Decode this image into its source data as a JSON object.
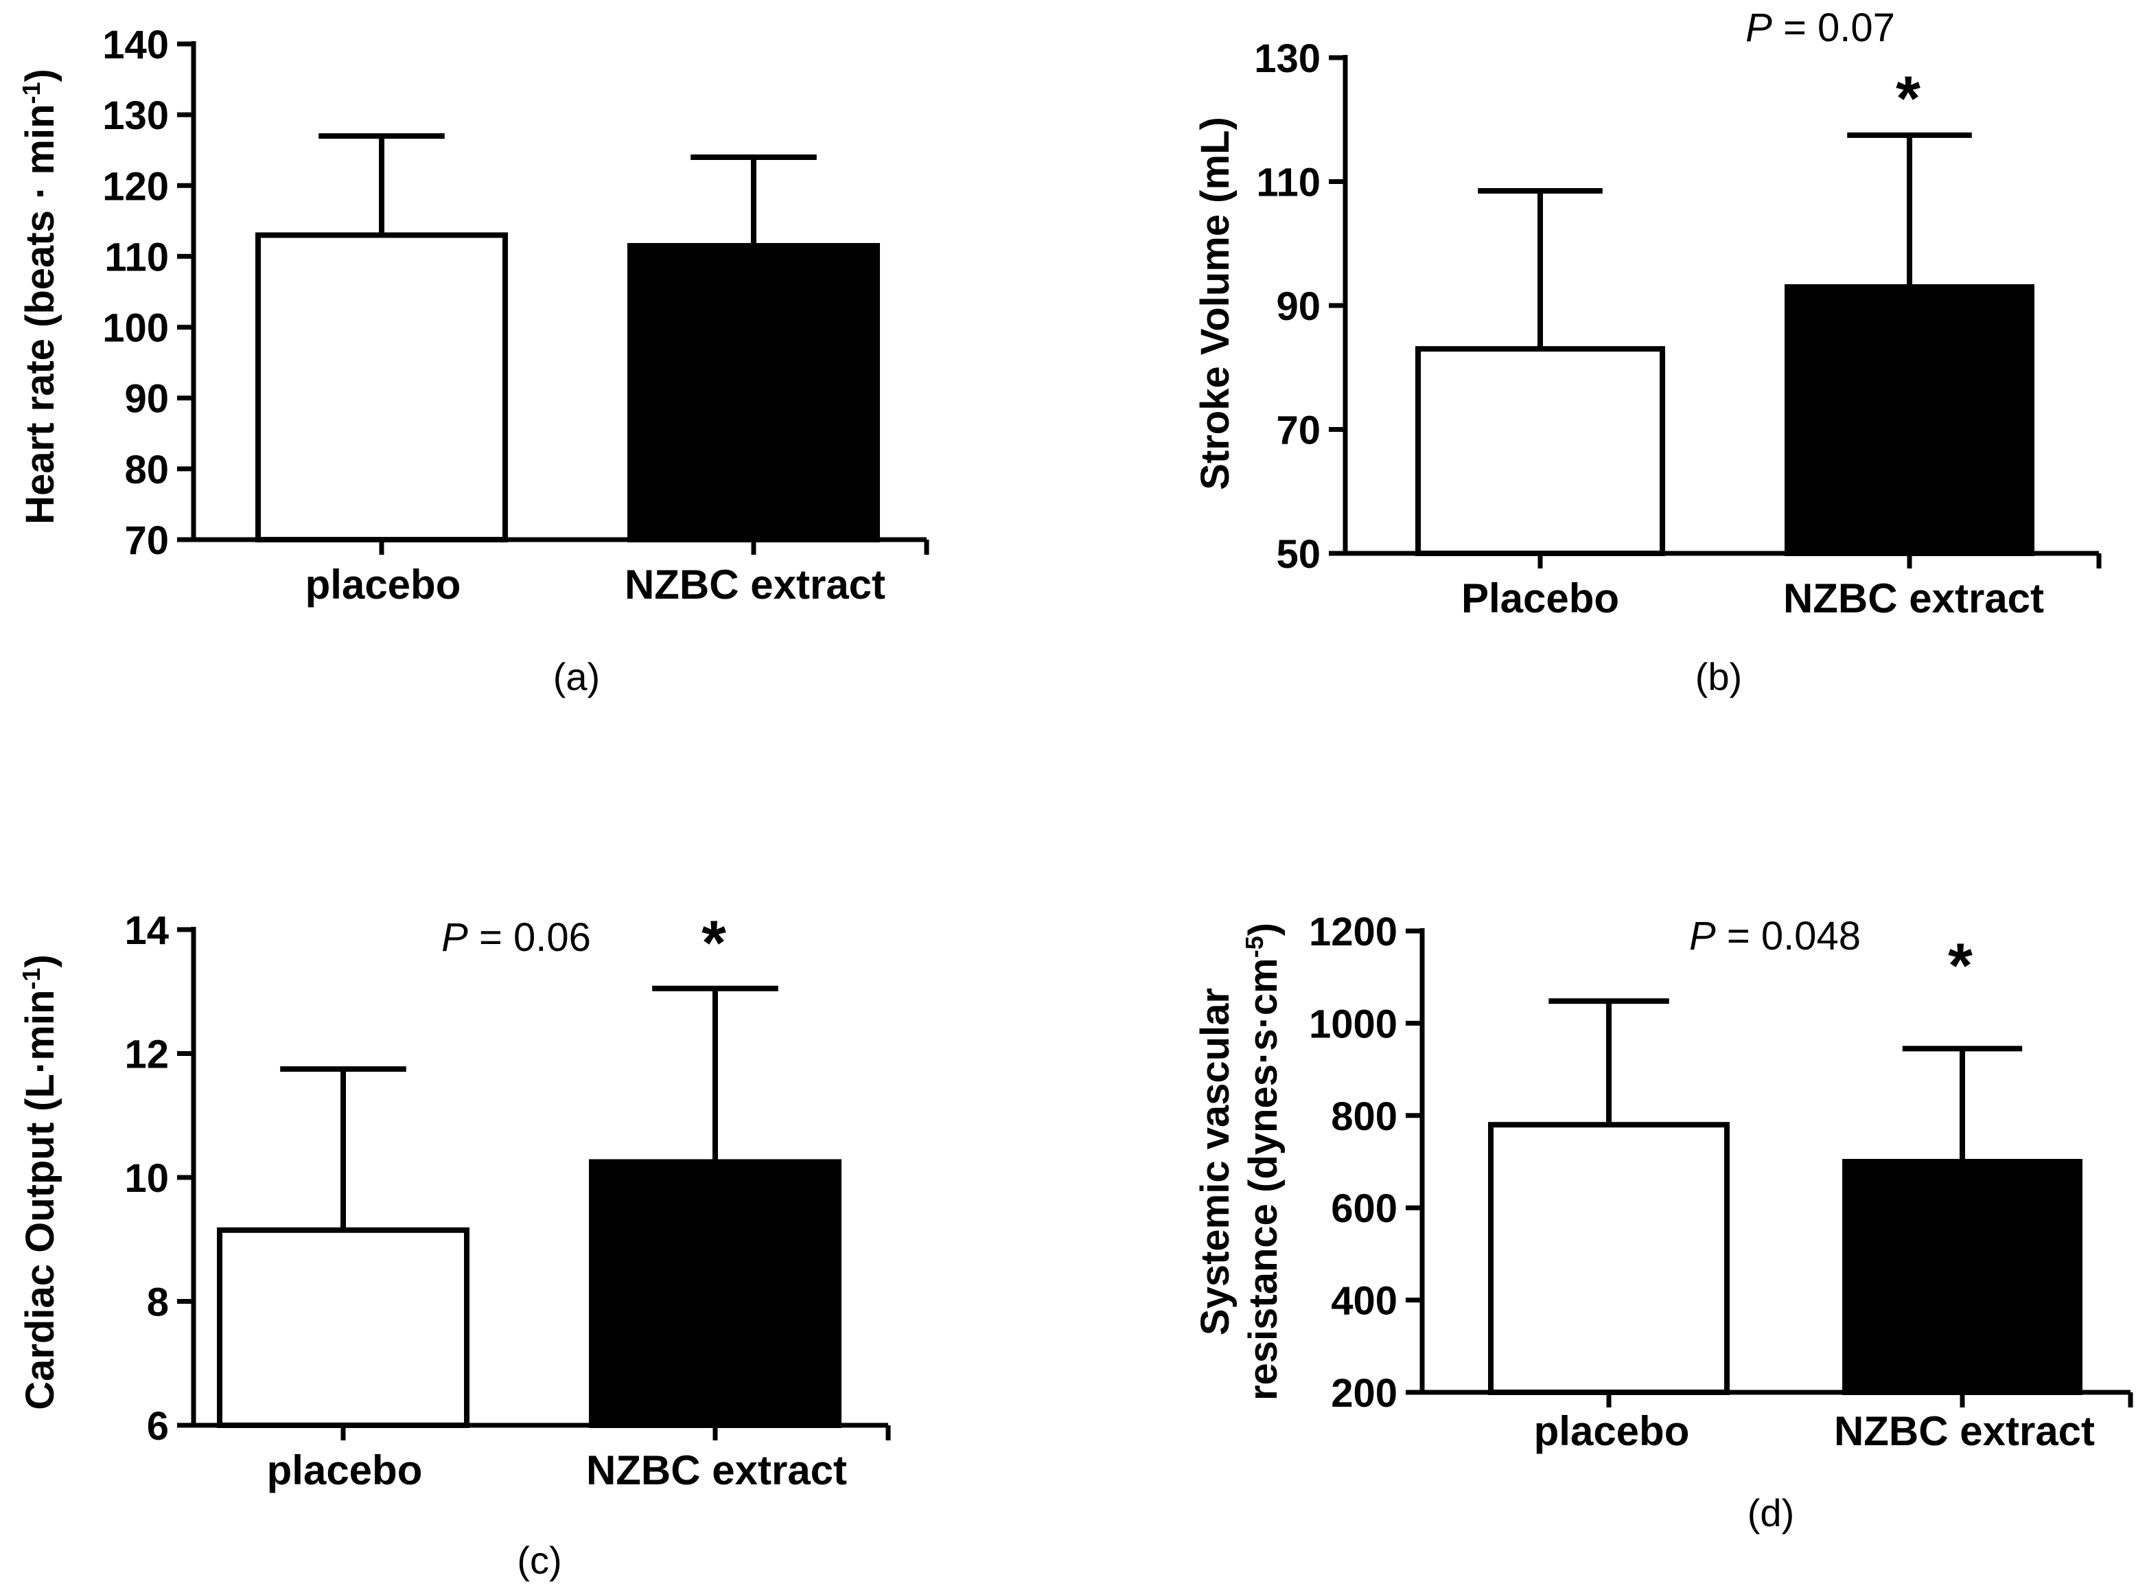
{
  "chart_data": [
    {
      "id": "a",
      "type": "bar",
      "panel_label": "(a)",
      "ylabel_main": "Heart rate (beats",
      "ylabel_dot": "·",
      "ylabel_unit": "min",
      "ylabel_sup": "-1",
      "ylabel_close": ")",
      "ylim": [
        70,
        140
      ],
      "yticks": [
        70,
        80,
        90,
        100,
        110,
        120,
        130,
        140
      ],
      "categories": [
        "placebo",
        "NZBC extract"
      ],
      "values": [
        113,
        111.5
      ],
      "errors": [
        14,
        12.5
      ],
      "fills": [
        "#ffffff",
        "#000000"
      ],
      "significance": [
        "",
        ""
      ],
      "p_label": "",
      "p_value": ""
    },
    {
      "id": "b",
      "type": "bar",
      "panel_label": "(b)",
      "ylabel_main": "Stroke Volume (mL)",
      "ylim": [
        50,
        130
      ],
      "yticks": [
        50,
        70,
        90,
        110,
        130
      ],
      "categories": [
        "Placebo",
        "NZBC extract"
      ],
      "values": [
        83,
        93
      ],
      "errors": [
        25.5,
        24.5
      ],
      "fills": [
        "#ffffff",
        "#000000"
      ],
      "significance": [
        "",
        "*"
      ],
      "p_label": "P",
      "p_value": "= 0.07"
    },
    {
      "id": "c",
      "type": "bar",
      "panel_label": "(c)",
      "ylabel_main": "Cardiac Output (L",
      "ylabel_dot": "·",
      "ylabel_unit": "min",
      "ylabel_sup": "-1",
      "ylabel_close": ")",
      "ylim": [
        6,
        14
      ],
      "yticks": [
        6,
        8,
        10,
        12,
        14
      ],
      "categories": [
        "placebo",
        "NZBC extract"
      ],
      "values": [
        9.15,
        10.25
      ],
      "errors": [
        2.6,
        2.8
      ],
      "fills": [
        "#ffffff",
        "#000000"
      ],
      "significance": [
        "",
        "*"
      ],
      "p_label": "P",
      "p_value": "= 0.06"
    },
    {
      "id": "d",
      "type": "bar",
      "panel_label": "(d)",
      "ylabel_main": "Systemic vascular",
      "ylabel_line2": "resistance (dynes·s·cm",
      "ylabel_sup": "-5",
      "ylabel_close": ")",
      "ylim": [
        200,
        1200
      ],
      "yticks": [
        200,
        400,
        600,
        800,
        1000,
        1200
      ],
      "categories": [
        "placebo",
        "NZBC extract"
      ],
      "values": [
        780,
        700
      ],
      "errors": [
        268,
        245
      ],
      "fills": [
        "#ffffff",
        "#000000"
      ],
      "significance": [
        "",
        "*"
      ],
      "p_label": "P",
      "p_value": "= 0.048"
    }
  ]
}
